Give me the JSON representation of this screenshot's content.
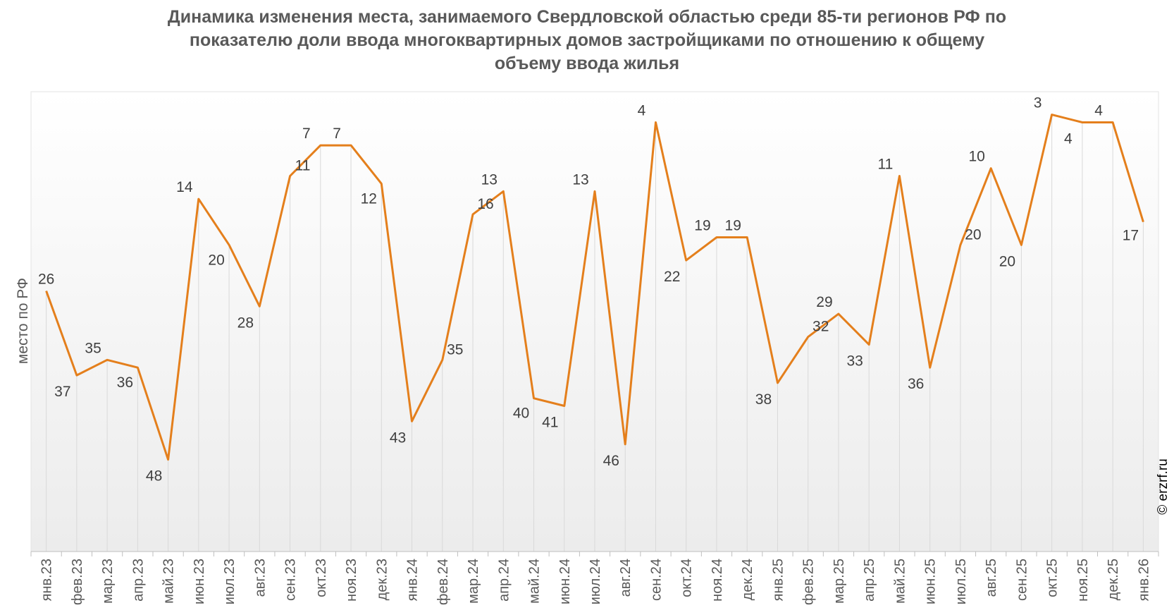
{
  "title_lines": [
    "Динамика изменения места, занимаемого Свердловской областью среди 85-ти регионов РФ по",
    "показателю доли ввода многоквартирных домов застройщиками по отношению к общему",
    "объему ввода жилья"
  ],
  "credit": "© erzrf.ru",
  "colors": {
    "line": "#E47F1C",
    "grid": "#D9D9D9",
    "text": "#595959"
  },
  "chart_data": {
    "type": "line",
    "ylabel": "место по РФ",
    "yaxis_inverted": true,
    "ylim": [
      60,
      0
    ],
    "grid": "vertical",
    "categories": [
      "янв.23",
      "фев.23",
      "мар.23",
      "апр.23",
      "май.23",
      "июн.23",
      "июл.23",
      "авг.23",
      "сен.23",
      "окт.23",
      "ноя.23",
      "дек.23",
      "янв.24",
      "фев.24",
      "мар.24",
      "апр.24",
      "май.24",
      "июн.24",
      "июл.24",
      "авг.24",
      "сен.24",
      "окт.24",
      "ноя.24",
      "дек.24",
      "янв.25",
      "фев.25",
      "мар.25",
      "апр.25",
      "май.25",
      "июн.25",
      "июл.25",
      "авг.25",
      "сен.25",
      "окт.25",
      "ноя.25",
      "дек.25",
      "янв.26"
    ],
    "values": [
      26,
      37,
      35,
      36,
      48,
      14,
      20,
      28,
      11,
      7,
      7,
      12,
      43,
      35,
      16,
      13,
      40,
      41,
      13,
      46,
      4,
      22,
      19,
      19,
      38,
      32,
      29,
      33,
      11,
      36,
      20,
      10,
      20,
      3,
      4,
      4,
      17
    ],
    "data_labels": [
      "26",
      "37",
      "35",
      "36",
      "48",
      "14",
      "20",
      "28",
      "11",
      "7",
      "7",
      "12",
      "43",
      "35",
      "16",
      "13",
      "40",
      "41",
      "13",
      "46",
      "4",
      "22",
      "19",
      "19",
      "38",
      "32",
      "29",
      "33",
      "11",
      "36",
      "20",
      "10",
      "20",
      "3",
      "4",
      "4",
      "17"
    ]
  }
}
